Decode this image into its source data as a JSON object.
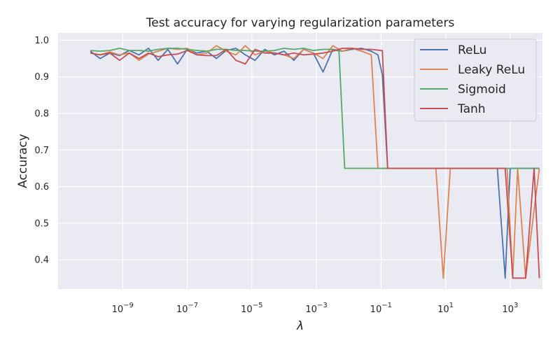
{
  "chart_data": {
    "type": "line",
    "title": "Test accuracy for varying regularization parameters",
    "xlabel": "λ",
    "ylabel": "Accuracy",
    "x_scale": "log",
    "xlim": [
      1e-11,
      10000.0
    ],
    "ylim": [
      0.32,
      1.02
    ],
    "grid": true,
    "legend_position": "top-right",
    "x_ticks": [
      {
        "value": 1e-09,
        "base": "10",
        "exp": "−9"
      },
      {
        "value": 1e-07,
        "base": "10",
        "exp": "−7"
      },
      {
        "value": 1e-05,
        "base": "10",
        "exp": "−5"
      },
      {
        "value": 0.001,
        "base": "10",
        "exp": "−3"
      },
      {
        "value": 0.1,
        "base": "10",
        "exp": "−1"
      },
      {
        "value": 10,
        "base": "10",
        "exp": "1"
      },
      {
        "value": 1000,
        "base": "10",
        "exp": "3"
      }
    ],
    "y_ticks": [
      {
        "value": 0.4,
        "label": "0.4"
      },
      {
        "value": 0.5,
        "label": "0.5"
      },
      {
        "value": 0.6,
        "label": "0.6"
      },
      {
        "value": 0.7,
        "label": "0.7"
      },
      {
        "value": 0.8,
        "label": "0.8"
      },
      {
        "value": 0.9,
        "label": "0.9"
      },
      {
        "value": 1.0,
        "label": "1.0"
      }
    ],
    "colors": {
      "background": "#eaeaf2",
      "grid": "#ffffff",
      "ReLu": "#4c72b0",
      "Leaky ReLu": "#dd8452",
      "Sigmoid": "#55a868",
      "Tanh": "#c44e52"
    },
    "series": [
      {
        "name": "ReLu",
        "x": [
          1e-10,
          2e-10,
          4e-10,
          8e-10,
          1.6e-09,
          3.2e-09,
          6.3e-09,
          1.25e-08,
          2.5e-08,
          5e-08,
          1e-07,
          2e-07,
          4e-07,
          8e-07,
          1.6e-06,
          3.2e-06,
          6.3e-06,
          1.25e-05,
          2.5e-05,
          5e-05,
          0.0001,
          0.0002,
          0.0004,
          0.0008,
          0.0016,
          0.0032,
          0.0063,
          0.0125,
          0.025,
          0.05,
          0.08,
          0.11,
          0.16,
          1,
          10,
          100,
          400,
          700,
          1000,
          2000,
          3000,
          5000,
          8000
        ],
        "y": [
          0.97,
          0.95,
          0.965,
          0.958,
          0.972,
          0.96,
          0.978,
          0.945,
          0.975,
          0.935,
          0.975,
          0.965,
          0.97,
          0.95,
          0.972,
          0.978,
          0.96,
          0.945,
          0.975,
          0.96,
          0.97,
          0.945,
          0.975,
          0.965,
          0.913,
          0.975,
          0.97,
          0.975,
          0.978,
          0.97,
          0.96,
          0.905,
          0.65,
          0.65,
          0.65,
          0.65,
          0.65,
          0.35,
          0.65,
          0.65,
          0.65,
          0.65,
          0.65
        ]
      },
      {
        "name": "Leaky ReLu",
        "x": [
          1e-10,
          2e-10,
          4e-10,
          8e-10,
          1.6e-09,
          3.2e-09,
          6.3e-09,
          1.25e-08,
          2.5e-08,
          5e-08,
          1e-07,
          2e-07,
          4e-07,
          8e-07,
          1.6e-06,
          3.2e-06,
          6.3e-06,
          1.25e-05,
          2.5e-05,
          5e-05,
          0.0001,
          0.0002,
          0.0004,
          0.0008,
          0.0016,
          0.0032,
          0.0063,
          0.0125,
          0.025,
          0.05,
          0.08,
          0.11,
          0.16,
          1,
          5,
          8.5,
          14,
          100,
          800,
          1200,
          1700,
          3000,
          8000
        ],
        "y": [
          0.965,
          0.96,
          0.968,
          0.96,
          0.965,
          0.945,
          0.962,
          0.97,
          0.978,
          0.975,
          0.978,
          0.96,
          0.965,
          0.985,
          0.97,
          0.96,
          0.985,
          0.96,
          0.97,
          0.965,
          0.96,
          0.95,
          0.975,
          0.965,
          0.95,
          0.985,
          0.97,
          0.978,
          0.97,
          0.96,
          0.65,
          0.65,
          0.65,
          0.65,
          0.65,
          0.35,
          0.65,
          0.65,
          0.65,
          0.35,
          0.65,
          0.35,
          0.65
        ]
      },
      {
        "name": "Sigmoid",
        "x": [
          1e-10,
          2e-10,
          4e-10,
          8e-10,
          1.6e-09,
          3.2e-09,
          6.3e-09,
          1.25e-08,
          2.5e-08,
          5e-08,
          1e-07,
          2e-07,
          4e-07,
          8e-07,
          1.6e-06,
          3.2e-06,
          6.3e-06,
          1.25e-05,
          2.5e-05,
          5e-05,
          0.0001,
          0.0002,
          0.0004,
          0.0008,
          0.0016,
          0.0032,
          0.005,
          0.0075,
          0.01,
          0.1,
          1,
          10,
          100,
          1000,
          8000
        ],
        "y": [
          0.972,
          0.97,
          0.972,
          0.978,
          0.972,
          0.972,
          0.97,
          0.975,
          0.978,
          0.978,
          0.975,
          0.972,
          0.97,
          0.975,
          0.975,
          0.972,
          0.972,
          0.97,
          0.97,
          0.972,
          0.978,
          0.975,
          0.978,
          0.972,
          0.975,
          0.975,
          0.97,
          0.65,
          0.65,
          0.65,
          0.65,
          0.65,
          0.65,
          0.65,
          0.65
        ]
      },
      {
        "name": "Tanh",
        "x": [
          1e-10,
          2e-10,
          4e-10,
          8e-10,
          1.6e-09,
          3.2e-09,
          6.3e-09,
          1.25e-08,
          2.5e-08,
          5e-08,
          1e-07,
          2e-07,
          4e-07,
          8e-07,
          1.6e-06,
          3.2e-06,
          6.3e-06,
          1.25e-05,
          2.5e-05,
          5e-05,
          0.0001,
          0.0002,
          0.0004,
          0.0008,
          0.0016,
          0.0032,
          0.0063,
          0.0125,
          0.025,
          0.05,
          0.1,
          0.11,
          0.16,
          1,
          10,
          100,
          700,
          1200,
          2000,
          3000,
          5500,
          8000
        ],
        "y": [
          0.965,
          0.96,
          0.965,
          0.945,
          0.965,
          0.95,
          0.965,
          0.955,
          0.96,
          0.962,
          0.972,
          0.96,
          0.958,
          0.958,
          0.975,
          0.945,
          0.935,
          0.975,
          0.965,
          0.965,
          0.96,
          0.965,
          0.96,
          0.962,
          0.965,
          0.97,
          0.978,
          0.978,
          0.975,
          0.975,
          0.972,
          0.972,
          0.65,
          0.65,
          0.65,
          0.65,
          0.65,
          0.35,
          0.35,
          0.35,
          0.65,
          0.35
        ]
      }
    ]
  }
}
